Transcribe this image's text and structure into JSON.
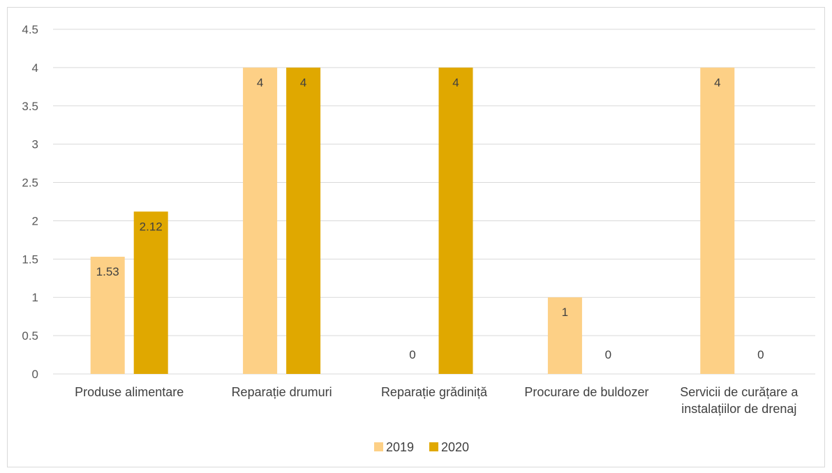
{
  "chart_data": {
    "type": "bar",
    "title": "",
    "xlabel": "",
    "ylabel": "",
    "categories": [
      [
        "Produse alimentare"
      ],
      [
        "Reparație drumuri"
      ],
      [
        "Reparație grădiniță"
      ],
      [
        "Procurare de buldozer"
      ],
      [
        "Servicii de curățare a",
        "instalațiilor de drenaj"
      ]
    ],
    "series": [
      {
        "name": "2019",
        "color": "#FDD086",
        "values": [
          1.53,
          4,
          0,
          1,
          4
        ],
        "labels": [
          "1.53",
          "4",
          "0",
          "1",
          "4"
        ]
      },
      {
        "name": "2020",
        "color": "#E0A800",
        "values": [
          2.12,
          4,
          4,
          0,
          0
        ],
        "labels": [
          "2.12",
          "4",
          "4",
          "0",
          "0"
        ]
      }
    ],
    "ylim": [
      0,
      4.5
    ],
    "ytick_labels": [
      "0",
      "0.5",
      "1",
      "1.5",
      "2",
      "2.5",
      "3",
      "3.5",
      "4",
      "4.5"
    ],
    "grid": true,
    "legend_position": "bottom"
  }
}
